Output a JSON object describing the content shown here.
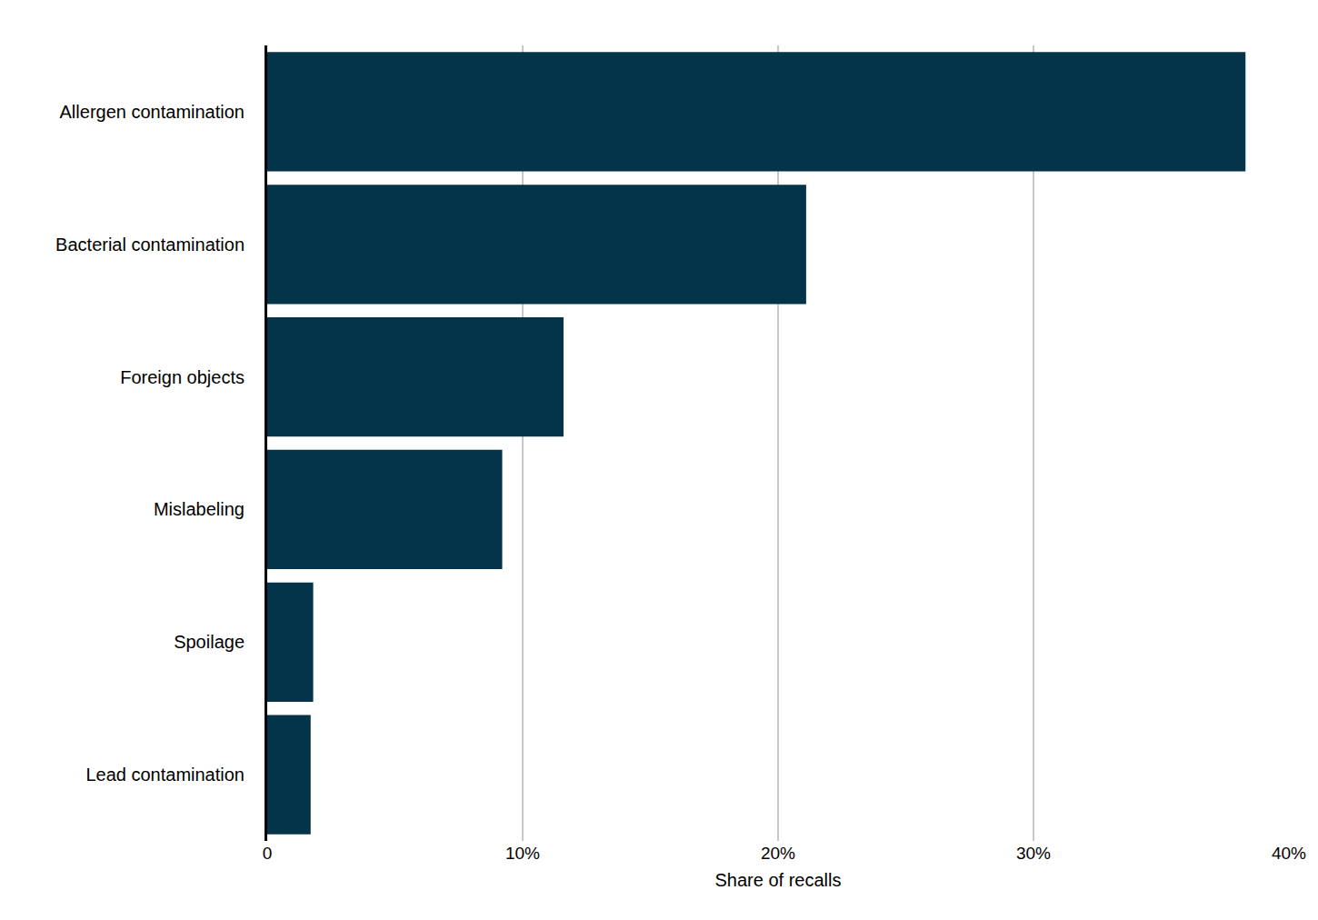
{
  "chart_data": {
    "type": "bar",
    "orientation": "horizontal",
    "categories": [
      "Allergen contamination",
      "Bacterial contamination",
      "Foreign objects",
      "Mislabeling",
      "Spoilage",
      "Lead contamination"
    ],
    "values": [
      38.3,
      21.1,
      11.6,
      9.2,
      1.8,
      1.7
    ],
    "color": "#03344a",
    "x_label": "Share of recalls",
    "xlim": [
      0,
      40
    ],
    "xticks": [
      0,
      {
        "value": 10,
        "label": "10%"
      },
      {
        "value": 20,
        "label": "20%"
      },
      {
        "value": 30,
        "label": "30%"
      },
      {
        "value": 40,
        "label": "40%"
      }
    ],
    "grid": true
  }
}
